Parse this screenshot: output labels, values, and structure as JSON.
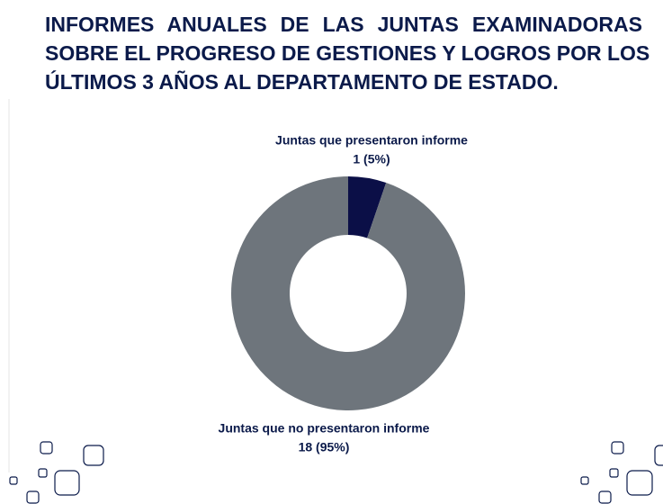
{
  "chart_data": {
    "type": "donut",
    "title_lines": [
      "INFORMES ANUALES DE LAS JUNTAS EXAMINADORAS",
      "SOBRE EL PROGRESO DE GESTIONES Y LOGROS POR LOS",
      "ÚLTIMOS 3 AÑOS AL DEPARTAMENTO DE ESTADO."
    ],
    "categories": [
      "Juntas que presentaron informe",
      "Juntas que no presentaron informe"
    ],
    "values": [
      1,
      18
    ],
    "value_labels": [
      "1 (5%)",
      "18 (95%)"
    ],
    "colors": [
      "#0b0f47",
      "#6e757c"
    ]
  }
}
